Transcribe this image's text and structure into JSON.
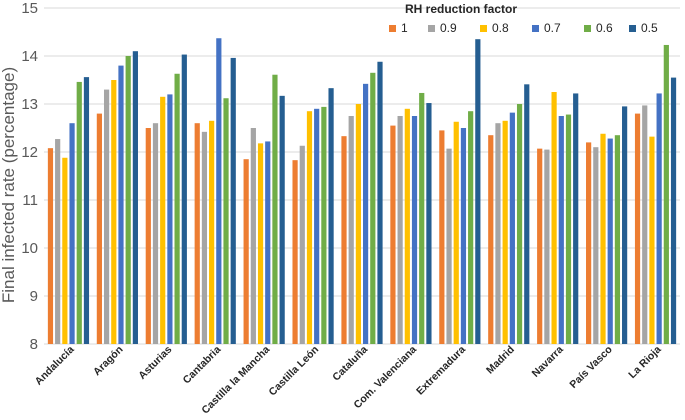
{
  "chart_data": {
    "type": "bar",
    "title": "",
    "xlabel": "",
    "ylabel": "Final infected rate (percentage)",
    "ylim": [
      8,
      15
    ],
    "yticks": [
      "8",
      "9",
      "10",
      "11",
      "12",
      "13",
      "14",
      "15"
    ],
    "grid": true,
    "legend_title": "RH reduction factor",
    "legend_position": "top-right",
    "categories": [
      "Andalucía",
      "Aragón",
      "Asturias",
      "Cantabria",
      "Castilla la Mancha",
      "Castilla León",
      "Cataluña",
      "Com. Valenciana",
      "Extremadura",
      "Madrid",
      "Navarra",
      "País Vasco",
      "La Rioja"
    ],
    "series": [
      {
        "name": "1",
        "color": "#ED7D31",
        "values": [
          12.08,
          12.8,
          12.5,
          12.6,
          11.85,
          11.83,
          12.33,
          12.55,
          12.45,
          12.35,
          12.07,
          12.2,
          12.8
        ]
      },
      {
        "name": "0.9",
        "color": "#A5A5A5",
        "values": [
          12.27,
          13.3,
          12.6,
          12.42,
          12.5,
          12.13,
          12.75,
          12.75,
          12.07,
          12.6,
          12.05,
          12.1,
          12.97
        ]
      },
      {
        "name": "0.8",
        "color": "#FFC000",
        "values": [
          11.88,
          13.5,
          13.15,
          12.65,
          12.18,
          12.85,
          13.0,
          12.9,
          12.63,
          12.65,
          13.25,
          12.38,
          12.32
        ]
      },
      {
        "name": "0.7",
        "color": "#4472C4",
        "values": [
          12.6,
          13.8,
          13.2,
          14.37,
          12.22,
          12.9,
          13.42,
          12.75,
          12.5,
          12.82,
          12.75,
          12.28,
          13.22
        ]
      },
      {
        "name": "0.6",
        "color": "#70AD47",
        "values": [
          13.46,
          14.0,
          13.63,
          13.12,
          13.61,
          12.94,
          13.65,
          13.23,
          12.85,
          13.0,
          12.78,
          12.35,
          14.23
        ]
      },
      {
        "name": "0.5",
        "color": "#255E91",
        "values": [
          13.56,
          14.1,
          14.03,
          13.96,
          13.17,
          13.33,
          13.88,
          13.02,
          14.35,
          13.41,
          13.22,
          12.95,
          13.55
        ]
      }
    ]
  }
}
